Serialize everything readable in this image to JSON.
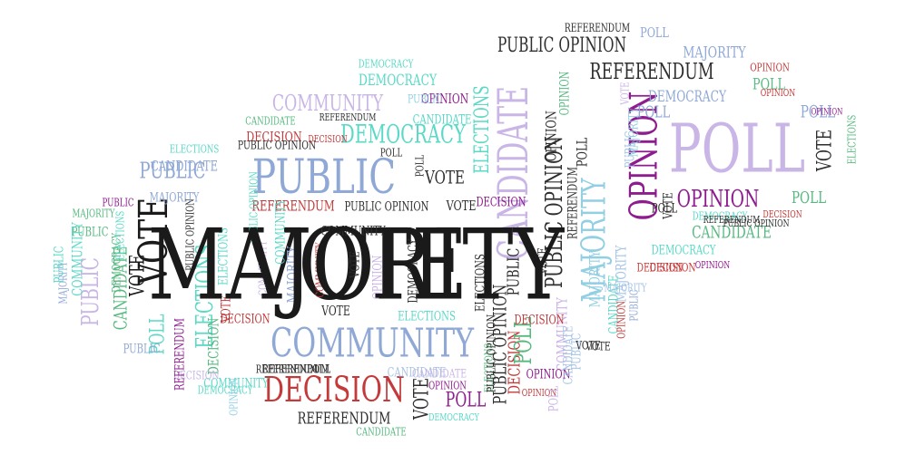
{
  "colors": {
    "black": "#1a1a1a",
    "dark": "#2e2e2e",
    "blue": "#8fa8d6",
    "lightblue": "#93cfe3",
    "teal": "#59d9c6",
    "lavender": "#cbb2ea",
    "green": "#57b97f",
    "red": "#c43a3a",
    "purple": "#8e1c8e",
    "paleblue": "#a7c4e6",
    "palelav": "#c9b6e6"
  },
  "words": [
    "VOTE",
    "PUBLIC",
    "COMMUNITY",
    "DECISION",
    "POLL",
    "OPINION",
    "CANDIDATE",
    "MAJORITY",
    "PUBLIC OPINION",
    "ELECTIONS",
    "DEMOCRACY",
    "REFERENDUM",
    "VOTE",
    "PUBLIC OPINION",
    "REFERENDUM",
    "POLL",
    "MAJORITY",
    "OPINION",
    "POLL",
    "DEMOCRACY",
    "COMMUNITY",
    "ELECTIONS",
    "DECISION",
    "PUBLIC",
    "VOTE",
    "VOTE",
    "PUBLIC OPINION",
    "POLL",
    "OPINION",
    "CANDIDATE",
    "DEMOCRACY",
    "PUBLIC",
    "REFERENDUM",
    "DECISION",
    "OPINION",
    "CANDIDATE",
    "PUBLIC",
    "DECISION",
    "POLL",
    "PUBLIC OPINION",
    "VOTE",
    "MAJORITY",
    "CANDIDATE",
    "ELECTIONS",
    "COMMUNITY",
    "PUBLIC",
    "MAJORITY",
    "DEMOCRACY",
    "VOTE",
    "REFERENDUM",
    "POLL",
    "OPINION",
    "DECISION",
    "ELECTIONS",
    "CANDIDATE",
    "MAJORITY",
    "COMMUNITY",
    "PUBLIC",
    "DEMOCRACY",
    "OPINION",
    "VOTE",
    "POLL",
    "REFERENDUM",
    "PUBLIC OPINION",
    "OPINION",
    "DECISION",
    "REFERENDUM",
    "CANDIDATE",
    "VOTE",
    "DEMOCRACY",
    "POLL",
    "OPINION",
    "MAJORITY",
    "COMMUNITY",
    "ELECTIONS",
    "PUBLIC",
    "PUBLIC OPINION",
    "COMMUNITY",
    "VOTE",
    "ELECTIONS",
    "DECISION",
    "POLL",
    "OPINION",
    "CANDIDATE",
    "MAJORITY",
    "PUBLIC",
    "VOTE",
    "DEMOCRACY",
    "REFERENDUM",
    "ELECTIONS",
    "DECISION",
    "OPINION",
    "POLL",
    "PUBLIC OPINION",
    "VOTE",
    "CANDIDATE",
    "OPINION",
    "MAJORITY",
    "POLL",
    "DECISION",
    "REFERENDUM",
    "DEMOCRACY",
    "PUBLIC",
    "VOTE",
    "CANDIDATE",
    "OPINION",
    "POLL",
    "REFERENDUM",
    "PUBLIC OPINION",
    "DECISION",
    "MAJORITY",
    "COMMUNITY",
    "ELECTIONS",
    "DEMOCRACY",
    "VOTE",
    "PUBLIC",
    "OPINION",
    "CANDIDATE",
    "POLL",
    "PUBLIC OPINION",
    "COMMUNITY",
    "VOTE",
    "DECISION",
    "POLL",
    "REFERENDUM",
    "OPINION",
    "MAJORITY",
    "PUBLIC",
    "ELECTIONS",
    "CANDIDATE",
    "DEMOCRACY",
    "VOTE",
    "COMMUNITY",
    "DECISION",
    "OPINION",
    "POLL",
    "PUBLIC",
    "MAJORITY"
  ]
}
